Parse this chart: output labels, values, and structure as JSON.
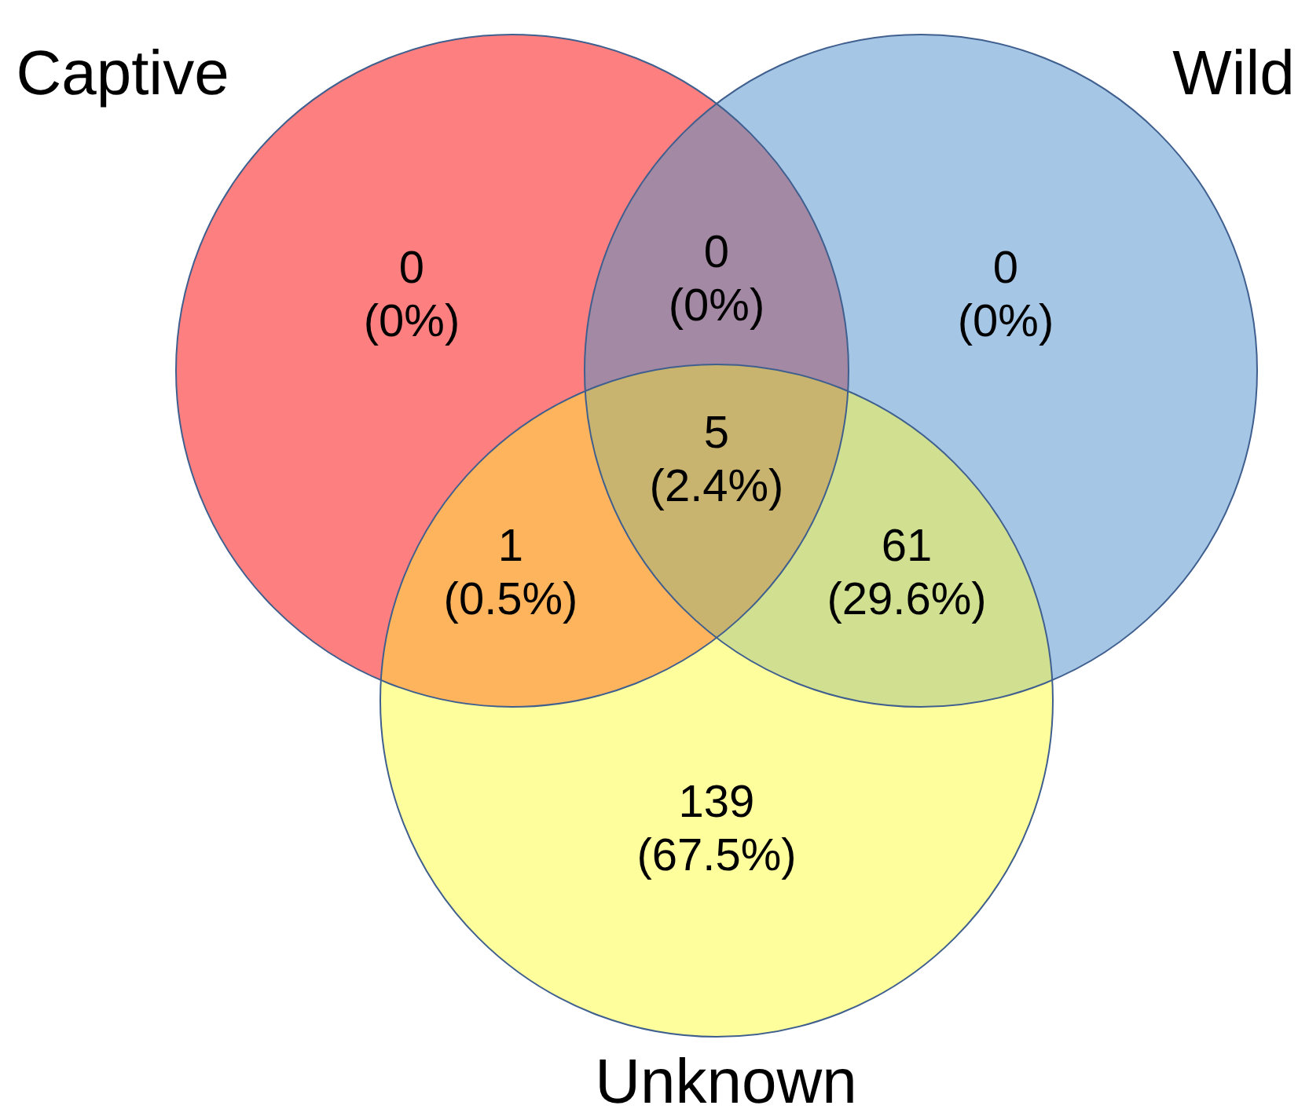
{
  "chart_data": {
    "type": "other",
    "categories": [
      null,
      null,
      null,
      null,
      null,
      null,
      null
    ],
    "values": [
      0,
      0,
      0,
      5,
      1,
      61,
      139
    ],
    "data_labels": true,
    "annotations": [
      "Captive",
      "Wild",
      "Unknown",
      "(0%)",
      "(0%)",
      "(0%)",
      "(2.4%)",
      "(0.5%)",
      "(29.6%)",
      "(67.5%)"
    ],
    "colors": [
      "#fe7f7f",
      "#a6c6e6",
      "#a389a3",
      "#c8b46e",
      "#fdb45c",
      "#d0e090",
      "#fefe9c"
    ]
  }
}
